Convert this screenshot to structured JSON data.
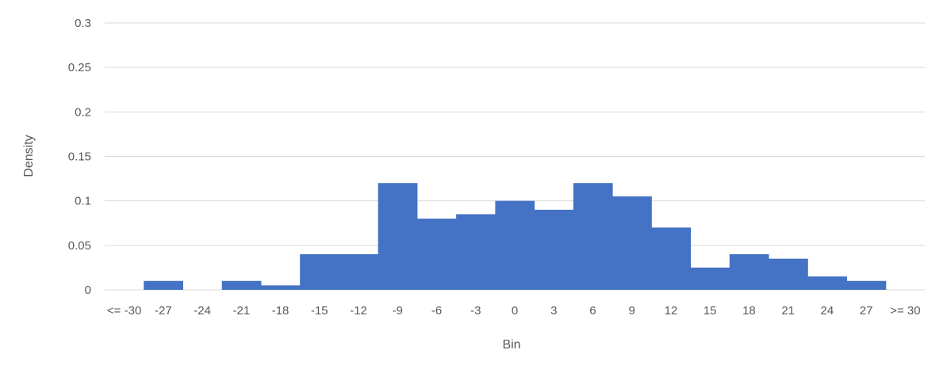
{
  "chart_data": {
    "type": "bar",
    "title": "",
    "xlabel": "Bin",
    "ylabel": "Density",
    "ylim": [
      0,
      0.3
    ],
    "y_ticks": [
      "0",
      "0.05",
      "0.1",
      "0.15",
      "0.2",
      "0.25",
      "0.3"
    ],
    "grid": true,
    "legend": "none",
    "bar_color": "#4472C4",
    "gridline_color": "#D9D9D9",
    "text_color": "#595959",
    "categories": [
      "<= -30",
      "-27",
      "-24",
      "-21",
      "-18",
      "-15",
      "-12",
      "-9",
      "-6",
      "-3",
      "0",
      "3",
      "6",
      "9",
      "12",
      "15",
      "18",
      "21",
      "24",
      "27",
      ">= 30"
    ],
    "values": [
      0,
      0.01,
      0,
      0.01,
      0.005,
      0.04,
      0.04,
      0.12,
      0.08,
      0.085,
      0.1,
      0.09,
      0.12,
      0.105,
      0.07,
      0.025,
      0.04,
      0.035,
      0.015,
      0.01,
      0
    ]
  }
}
